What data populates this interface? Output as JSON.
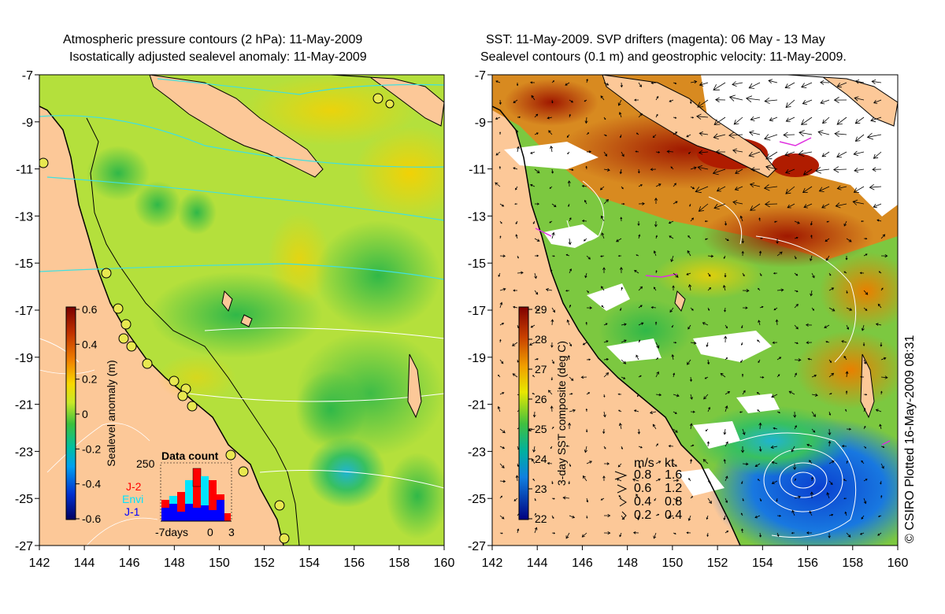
{
  "left_panel": {
    "title_line1": "Atmospheric pressure contours (2 hPa): 11-May-2009",
    "title_line2": "Isostatically adjusted sealevel anomaly: 11-May-2009",
    "colorbar_label": "Sealevel anomaly (m)",
    "colorbar_ticks": [
      "0.6",
      "0.4",
      "0.2",
      "0",
      "-0.2",
      "-0.4",
      "-0.6"
    ],
    "inset": {
      "title": "Data count",
      "ymax_label": "250",
      "missions": [
        {
          "name": "J-2",
          "color": "#ff0000"
        },
        {
          "name": "Envi",
          "color": "#00e5ff"
        },
        {
          "name": "J-1",
          "color": "#0000ff"
        }
      ],
      "x_labels": [
        "-7days",
        "0",
        "3"
      ]
    }
  },
  "right_panel": {
    "title_line1": "SST: 11-May-2009. SVP drifters (magenta): 06 May - 13 May",
    "title_line2": "Sealevel contours (0.1 m) and geostrophic velocity: 11-May-2009.",
    "colorbar_label": "3-day SST composite (deg C)",
    "colorbar_ticks": [
      "29",
      "28",
      "27",
      "26",
      "25",
      "24",
      "23",
      "22"
    ],
    "velocity_legend": {
      "header_ms": "m/s",
      "header_kt": "kt",
      "rows": [
        {
          "ms": "0.8",
          "kt": "1.6"
        },
        {
          "ms": "0.6",
          "kt": "1.2"
        },
        {
          "ms": "0.4",
          "kt": "0.8"
        },
        {
          "ms": "0.2",
          "kt": "0.4"
        }
      ]
    }
  },
  "axes": {
    "lat_labels": [
      "-7",
      "-9",
      "-11",
      "-13",
      "-15",
      "-17",
      "-19",
      "-21",
      "-23",
      "-25",
      "-27"
    ],
    "lon_labels": [
      "142",
      "144",
      "146",
      "148",
      "150",
      "152",
      "154",
      "156",
      "158",
      "160"
    ]
  },
  "credit": "© CSIRO Plotted 16-May-2009 08:31",
  "colors": {
    "land": "#fcc898",
    "sla_mid": "#a8dc3c",
    "sst_warm": "#b01c00",
    "sst_cool": "#1c8ce0"
  }
}
